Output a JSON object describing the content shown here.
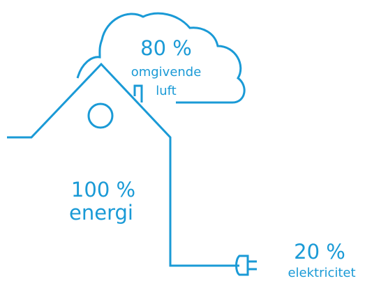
{
  "colors": {
    "line": "#1a9ad6",
    "text": "#1a9ad6",
    "background": "#ffffff"
  },
  "cloud": {
    "percent": "80 %",
    "label_line1": "omgivende",
    "label_line2": "luft"
  },
  "house": {
    "percent": "100 %",
    "label": "energi"
  },
  "plug": {
    "percent": "20 %",
    "label": "elektricitet"
  },
  "icons": [
    "cloud-icon",
    "house-icon",
    "window-icon",
    "chimney-icon",
    "power-cable",
    "plug-icon"
  ]
}
